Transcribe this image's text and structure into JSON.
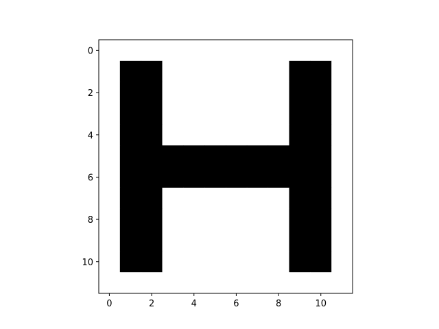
{
  "chart_data": {
    "type": "heatmap",
    "title": "",
    "xlabel": "",
    "ylabel": "",
    "xlim": [
      -0.5,
      11.5
    ],
    "ylim": [
      11.5,
      -0.5
    ],
    "y_inverted": true,
    "xticks": [
      0,
      2,
      4,
      6,
      8,
      10
    ],
    "yticks": [
      0,
      2,
      4,
      6,
      8,
      10
    ],
    "grid": false,
    "colormap": {
      "0": "#ffffff",
      "1": "#000000"
    },
    "matrix": [
      [
        0,
        0,
        0,
        0,
        0,
        0,
        0,
        0,
        0,
        0,
        0,
        0
      ],
      [
        0,
        1,
        1,
        0,
        0,
        0,
        0,
        0,
        0,
        1,
        1,
        0
      ],
      [
        0,
        1,
        1,
        0,
        0,
        0,
        0,
        0,
        0,
        1,
        1,
        0
      ],
      [
        0,
        1,
        1,
        0,
        0,
        0,
        0,
        0,
        0,
        1,
        1,
        0
      ],
      [
        0,
        1,
        1,
        0,
        0,
        0,
        0,
        0,
        0,
        1,
        1,
        0
      ],
      [
        0,
        1,
        1,
        1,
        1,
        1,
        1,
        1,
        1,
        1,
        1,
        0
      ],
      [
        0,
        1,
        1,
        1,
        1,
        1,
        1,
        1,
        1,
        1,
        1,
        0
      ],
      [
        0,
        1,
        1,
        0,
        0,
        0,
        0,
        0,
        0,
        1,
        1,
        0
      ],
      [
        0,
        1,
        1,
        0,
        0,
        0,
        0,
        0,
        0,
        1,
        1,
        0
      ],
      [
        0,
        1,
        1,
        0,
        0,
        0,
        0,
        0,
        0,
        1,
        1,
        0
      ],
      [
        0,
        1,
        1,
        0,
        0,
        0,
        0,
        0,
        0,
        1,
        1,
        0
      ],
      [
        0,
        0,
        0,
        0,
        0,
        0,
        0,
        0,
        0,
        0,
        0,
        0
      ]
    ]
  }
}
